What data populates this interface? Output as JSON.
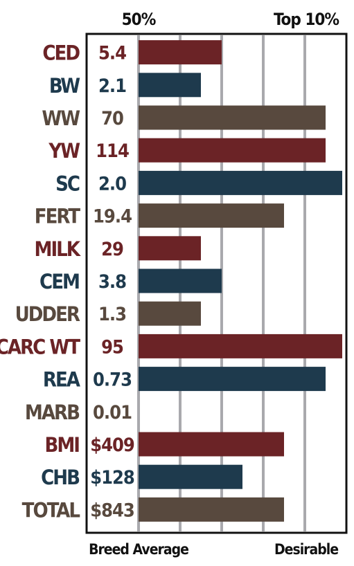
{
  "chart_data": {
    "type": "bar",
    "orientation": "horizontal",
    "top_labels": {
      "left": "50%",
      "right": "Top 10%"
    },
    "bottom_labels": {
      "left": "Breed Average",
      "right": "Desirable"
    },
    "categories": [
      "CED",
      "BW",
      "WW",
      "YW",
      "SC",
      "FERT",
      "MILK",
      "CEM",
      "UDDER",
      "CARC WT",
      "REA",
      "MARB",
      "BMI",
      "CHB",
      "TOTAL"
    ],
    "value_labels": [
      "5.4",
      "2.1",
      "70",
      "114",
      "2.0",
      "19.4",
      "29",
      "3.8",
      "1.3",
      "95",
      "0.73",
      "0.01",
      "$409",
      "$128",
      "$843"
    ],
    "bar_levels": [
      2,
      1.5,
      4.5,
      4.5,
      5,
      3.5,
      1.5,
      2,
      1.5,
      5,
      4.5,
      0,
      3.5,
      2.5,
      3.5
    ],
    "bar_colors": [
      "#6b2326",
      "#1e3a4d",
      "#58493e",
      "#6b2326",
      "#1e3a4d",
      "#58493e",
      "#6b2326",
      "#1e3a4d",
      "#58493e",
      "#6b2326",
      "#1e3a4d",
      "#58493e",
      "#6b2326",
      "#1e3a4d",
      "#58493e"
    ],
    "xlim": [
      0,
      5
    ],
    "grid": true
  }
}
